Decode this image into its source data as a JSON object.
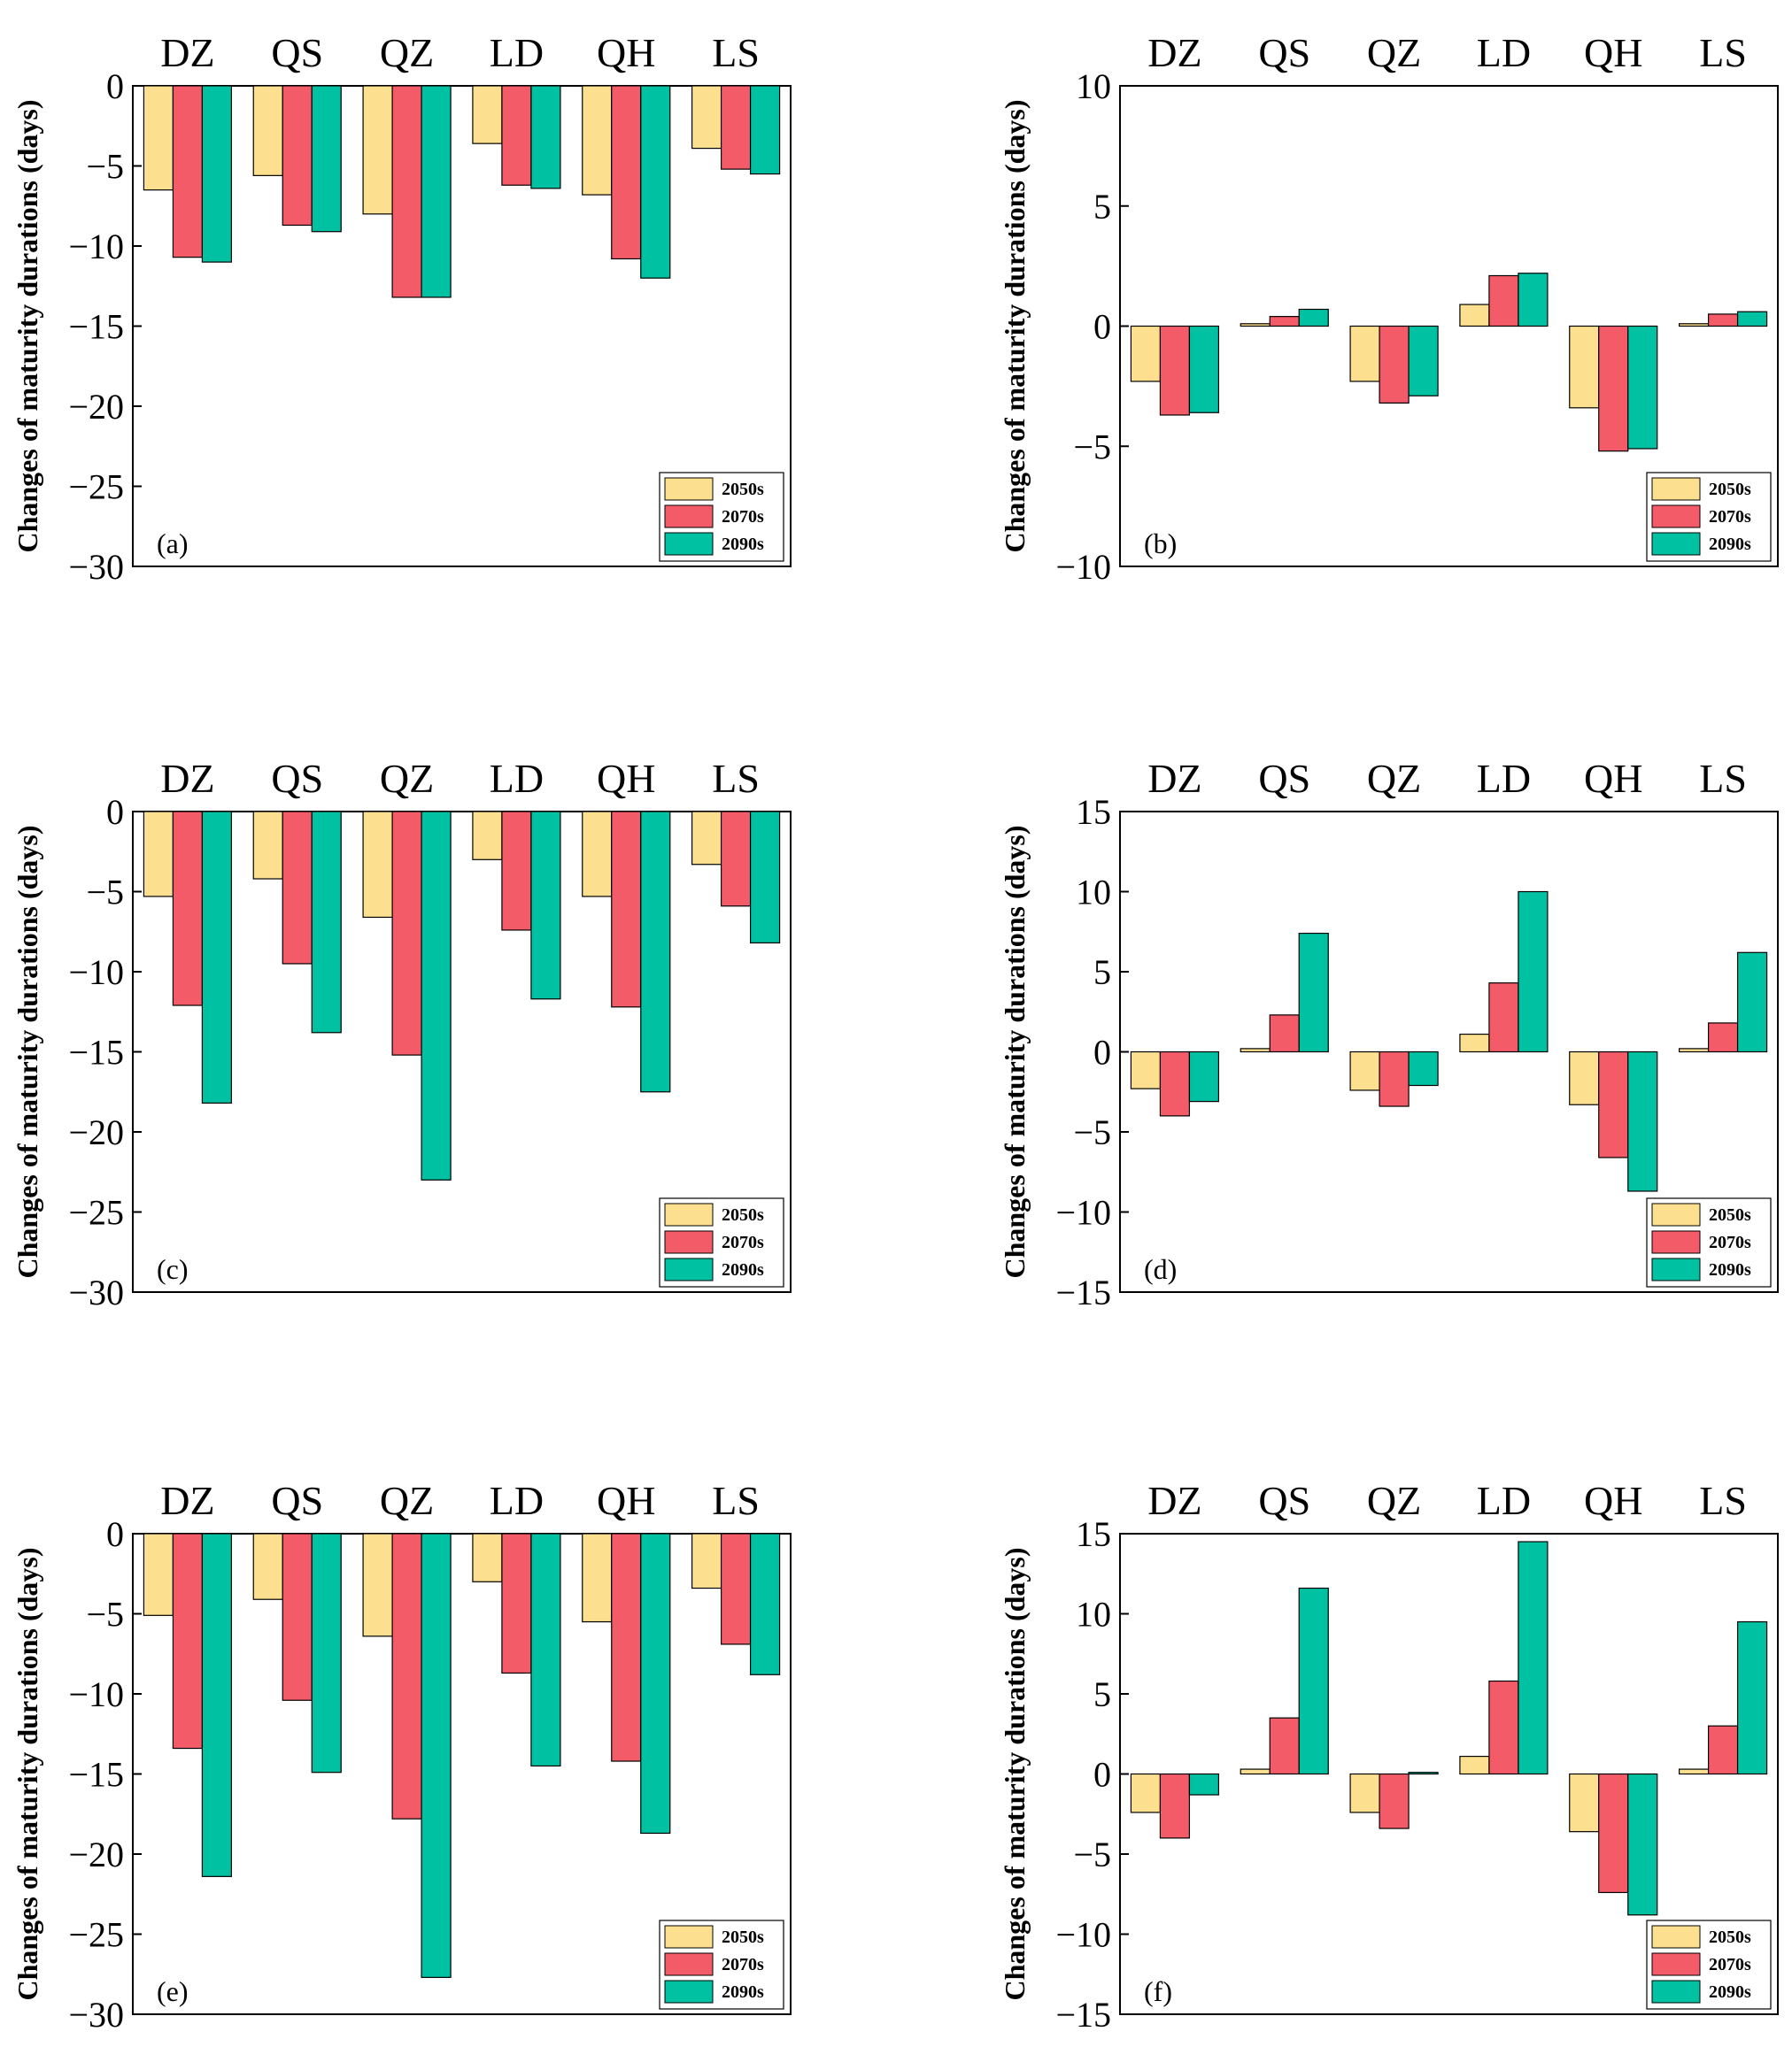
{
  "colors": {
    "2050s": "#fde08f",
    "2070s": "#f45b69",
    "2090s": "#00c2a2",
    "axis": "#000000"
  },
  "chart_data": [
    {
      "panel": "(a)",
      "type": "bar",
      "categories": [
        "DZ",
        "QS",
        "QZ",
        "LD",
        "QH",
        "LS"
      ],
      "series": [
        {
          "name": "2050s",
          "values": [
            -6.5,
            -5.6,
            -8.0,
            -3.6,
            -6.8,
            -3.9
          ]
        },
        {
          "name": "2070s",
          "values": [
            -10.7,
            -8.7,
            -13.2,
            -6.2,
            -10.8,
            -5.2
          ]
        },
        {
          "name": "2090s",
          "values": [
            -11.0,
            -9.1,
            -13.2,
            -6.4,
            -12.0,
            -5.5
          ]
        }
      ],
      "ylabel": "Changes of maturity durations (days)",
      "ylim": [
        -30,
        0
      ],
      "yticks": [
        0,
        -5,
        -10,
        -15,
        -20,
        -25,
        -30
      ],
      "ytick_labels": [
        "0",
        "−5",
        "−10",
        "−15",
        "−20",
        "−25",
        "−30"
      ],
      "legend": [
        "2050s",
        "2070s",
        "2090s"
      ],
      "legend_position": "bottom-right"
    },
    {
      "panel": "(b)",
      "type": "bar",
      "categories": [
        "DZ",
        "QS",
        "QZ",
        "LD",
        "QH",
        "LS"
      ],
      "series": [
        {
          "name": "2050s",
          "values": [
            -2.3,
            0.1,
            -2.3,
            0.9,
            -3.4,
            0.1
          ]
        },
        {
          "name": "2070s",
          "values": [
            -3.7,
            0.4,
            -3.2,
            2.1,
            -5.2,
            0.5
          ]
        },
        {
          "name": "2090s",
          "values": [
            -3.6,
            0.7,
            -2.9,
            2.2,
            -5.1,
            0.6
          ]
        }
      ],
      "ylabel": "Changes of maturity durations (days)",
      "ylim": [
        -10,
        10
      ],
      "yticks": [
        10,
        5,
        0,
        -5,
        -10
      ],
      "ytick_labels": [
        "10",
        "5",
        "0",
        "−5",
        "−10"
      ],
      "legend": [
        "2050s",
        "2070s",
        "2090s"
      ],
      "legend_position": "bottom-right"
    },
    {
      "panel": "(c)",
      "type": "bar",
      "categories": [
        "DZ",
        "QS",
        "QZ",
        "LD",
        "QH",
        "LS"
      ],
      "series": [
        {
          "name": "2050s",
          "values": [
            -5.3,
            -4.2,
            -6.6,
            -3.0,
            -5.3,
            -3.3
          ]
        },
        {
          "name": "2070s",
          "values": [
            -12.1,
            -9.5,
            -15.2,
            -7.4,
            -12.2,
            -5.9
          ]
        },
        {
          "name": "2090s",
          "values": [
            -18.2,
            -13.8,
            -23.0,
            -11.7,
            -17.5,
            -8.2
          ]
        }
      ],
      "ylabel": "Changes of maturity durations (days)",
      "ylim": [
        -30,
        0
      ],
      "yticks": [
        0,
        -5,
        -10,
        -15,
        -20,
        -25,
        -30
      ],
      "ytick_labels": [
        "0",
        "−5",
        "−10",
        "−15",
        "−20",
        "−25",
        "−30"
      ],
      "legend": [
        "2050s",
        "2070s",
        "2090s"
      ],
      "legend_position": "bottom-right"
    },
    {
      "panel": "(d)",
      "type": "bar",
      "categories": [
        "DZ",
        "QS",
        "QZ",
        "LD",
        "QH",
        "LS"
      ],
      "series": [
        {
          "name": "2050s",
          "values": [
            -2.3,
            0.2,
            -2.4,
            1.1,
            -3.3,
            0.2
          ]
        },
        {
          "name": "2070s",
          "values": [
            -4.0,
            2.3,
            -3.4,
            4.3,
            -6.6,
            1.8
          ]
        },
        {
          "name": "2090s",
          "values": [
            -3.1,
            7.4,
            -2.1,
            10.0,
            -8.7,
            6.2
          ]
        }
      ],
      "ylabel": "Changes of maturity durations (days)",
      "ylim": [
        -15,
        15
      ],
      "yticks": [
        15,
        10,
        5,
        0,
        -5,
        -10,
        -15
      ],
      "ytick_labels": [
        "15",
        "10",
        "5",
        "0",
        "−5",
        "−10",
        "−15"
      ],
      "legend": [
        "2050s",
        "2070s",
        "2090s"
      ],
      "legend_position": "bottom-right"
    },
    {
      "panel": "(e)",
      "type": "bar",
      "categories": [
        "DZ",
        "QS",
        "QZ",
        "LD",
        "QH",
        "LS"
      ],
      "series": [
        {
          "name": "2050s",
          "values": [
            -5.1,
            -4.1,
            -6.4,
            -3.0,
            -5.5,
            -3.4
          ]
        },
        {
          "name": "2070s",
          "values": [
            -13.4,
            -10.4,
            -17.8,
            -8.7,
            -14.2,
            -6.9
          ]
        },
        {
          "name": "2090s",
          "values": [
            -21.4,
            -14.9,
            -27.7,
            -14.5,
            -18.7,
            -8.8
          ]
        }
      ],
      "ylabel": "Changes of maturity durations (days)",
      "ylim": [
        -30,
        0
      ],
      "yticks": [
        0,
        -5,
        -10,
        -15,
        -20,
        -25,
        -30
      ],
      "ytick_labels": [
        "0",
        "−5",
        "−10",
        "−15",
        "−20",
        "−25",
        "−30"
      ],
      "legend": [
        "2050s",
        "2070s",
        "2090s"
      ],
      "legend_position": "bottom-right"
    },
    {
      "panel": "(f)",
      "type": "bar",
      "categories": [
        "DZ",
        "QS",
        "QZ",
        "LD",
        "QH",
        "LS"
      ],
      "series": [
        {
          "name": "2050s",
          "values": [
            -2.4,
            0.3,
            -2.4,
            1.1,
            -3.6,
            0.3
          ]
        },
        {
          "name": "2070s",
          "values": [
            -4.0,
            3.5,
            -3.4,
            5.8,
            -7.4,
            3.0
          ]
        },
        {
          "name": "2090s",
          "values": [
            -1.3,
            11.6,
            0.1,
            14.5,
            -8.8,
            9.5
          ]
        }
      ],
      "ylabel": "Changes of maturity durations (days)",
      "ylim": [
        -15,
        15
      ],
      "yticks": [
        15,
        10,
        5,
        0,
        -5,
        -10,
        -15
      ],
      "ytick_labels": [
        "15",
        "10",
        "5",
        "0",
        "−5",
        "−10",
        "−15"
      ],
      "legend": [
        "2050s",
        "2070s",
        "2090s"
      ],
      "legend_position": "bottom-right"
    }
  ]
}
